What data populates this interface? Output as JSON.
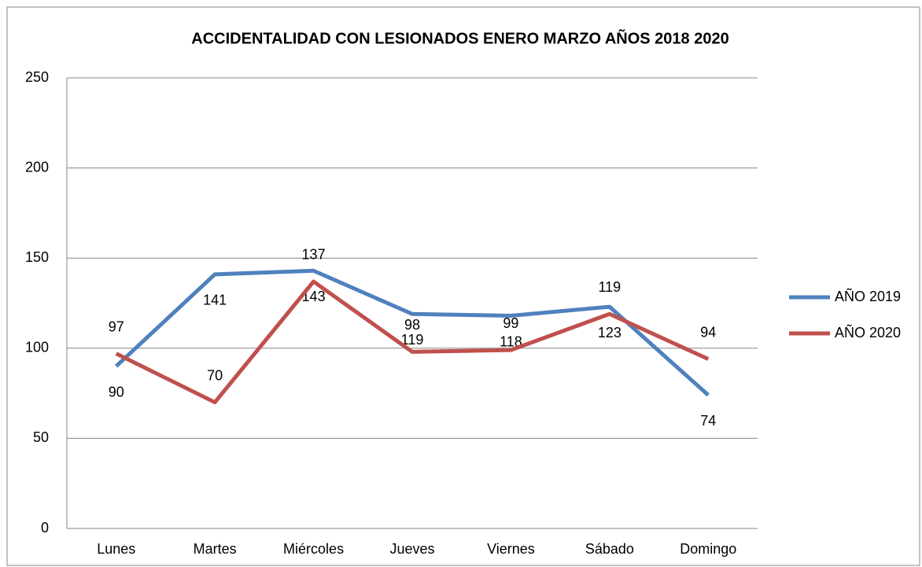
{
  "chart_data": {
    "type": "line",
    "title": "ACCIDENTALIDAD CON LESIONADOS ENERO MARZO AÑOS 2018 2020",
    "categories": [
      "Lunes",
      "Martes",
      "Miércoles",
      "Jueves",
      "Viernes",
      "Sábado",
      "Domingo"
    ],
    "series": [
      {
        "name": "AÑO 2019",
        "color": "#4f81bd",
        "values": [
          90,
          141,
          143,
          119,
          118,
          123,
          74
        ]
      },
      {
        "name": "AÑO 2020",
        "color": "#c0504d",
        "values": [
          97,
          70,
          137,
          98,
          99,
          119,
          94
        ]
      }
    ],
    "ylim": [
      0,
      250
    ],
    "yticks": [
      0,
      50,
      100,
      150,
      200,
      250
    ],
    "grid": true,
    "legend": "right"
  }
}
